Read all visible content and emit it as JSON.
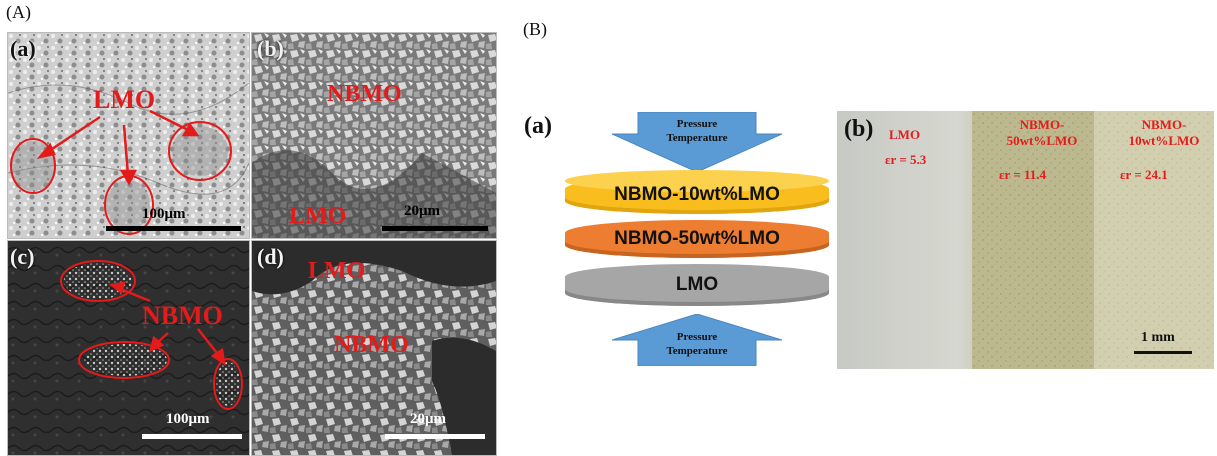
{
  "figure": {
    "part_a_label": "(A)",
    "part_b_label": "(B)"
  },
  "sem_panels": {
    "a": {
      "label": "(a)",
      "annotation": "LMO",
      "scale": "100μm"
    },
    "b": {
      "label": "(b)",
      "annotation_top": "NBMO",
      "annotation_bottom": "LMO",
      "scale": "20μm"
    },
    "c": {
      "label": "(c)",
      "annotation": "NBMO",
      "scale": "100μm"
    },
    "d": {
      "label": "(d)",
      "annotation_top": "LMO",
      "annotation_bottom": "NBMO",
      "scale": "20μm"
    }
  },
  "stack_diagram": {
    "label": "(a)",
    "top_arrow": [
      "Pressure",
      "Temperature"
    ],
    "bottom_arrow": [
      "Pressure",
      "Temperature"
    ],
    "layers": [
      {
        "name": "NBMO-10wt%LMO",
        "color": "#f9be1e"
      },
      {
        "name": "NBMO-50wt%LMO",
        "color": "#ed7d31"
      },
      {
        "name": "LMO",
        "color": "#a6a6a6"
      }
    ],
    "arrow_color": "#5b9bd5"
  },
  "photo": {
    "label": "(b)",
    "sections": [
      {
        "name": "LMO",
        "name_line2": "",
        "permittivity": "εr = 5.3"
      },
      {
        "name": "NBMO-",
        "name_line2": "50wt%LMO",
        "permittivity": "εr = 11.4"
      },
      {
        "name": "NBMO-",
        "name_line2": "10wt%LMO",
        "permittivity": "εr = 24.1"
      }
    ],
    "scale": "1 mm"
  },
  "colors": {
    "annotation_red": "#e31b1b"
  }
}
